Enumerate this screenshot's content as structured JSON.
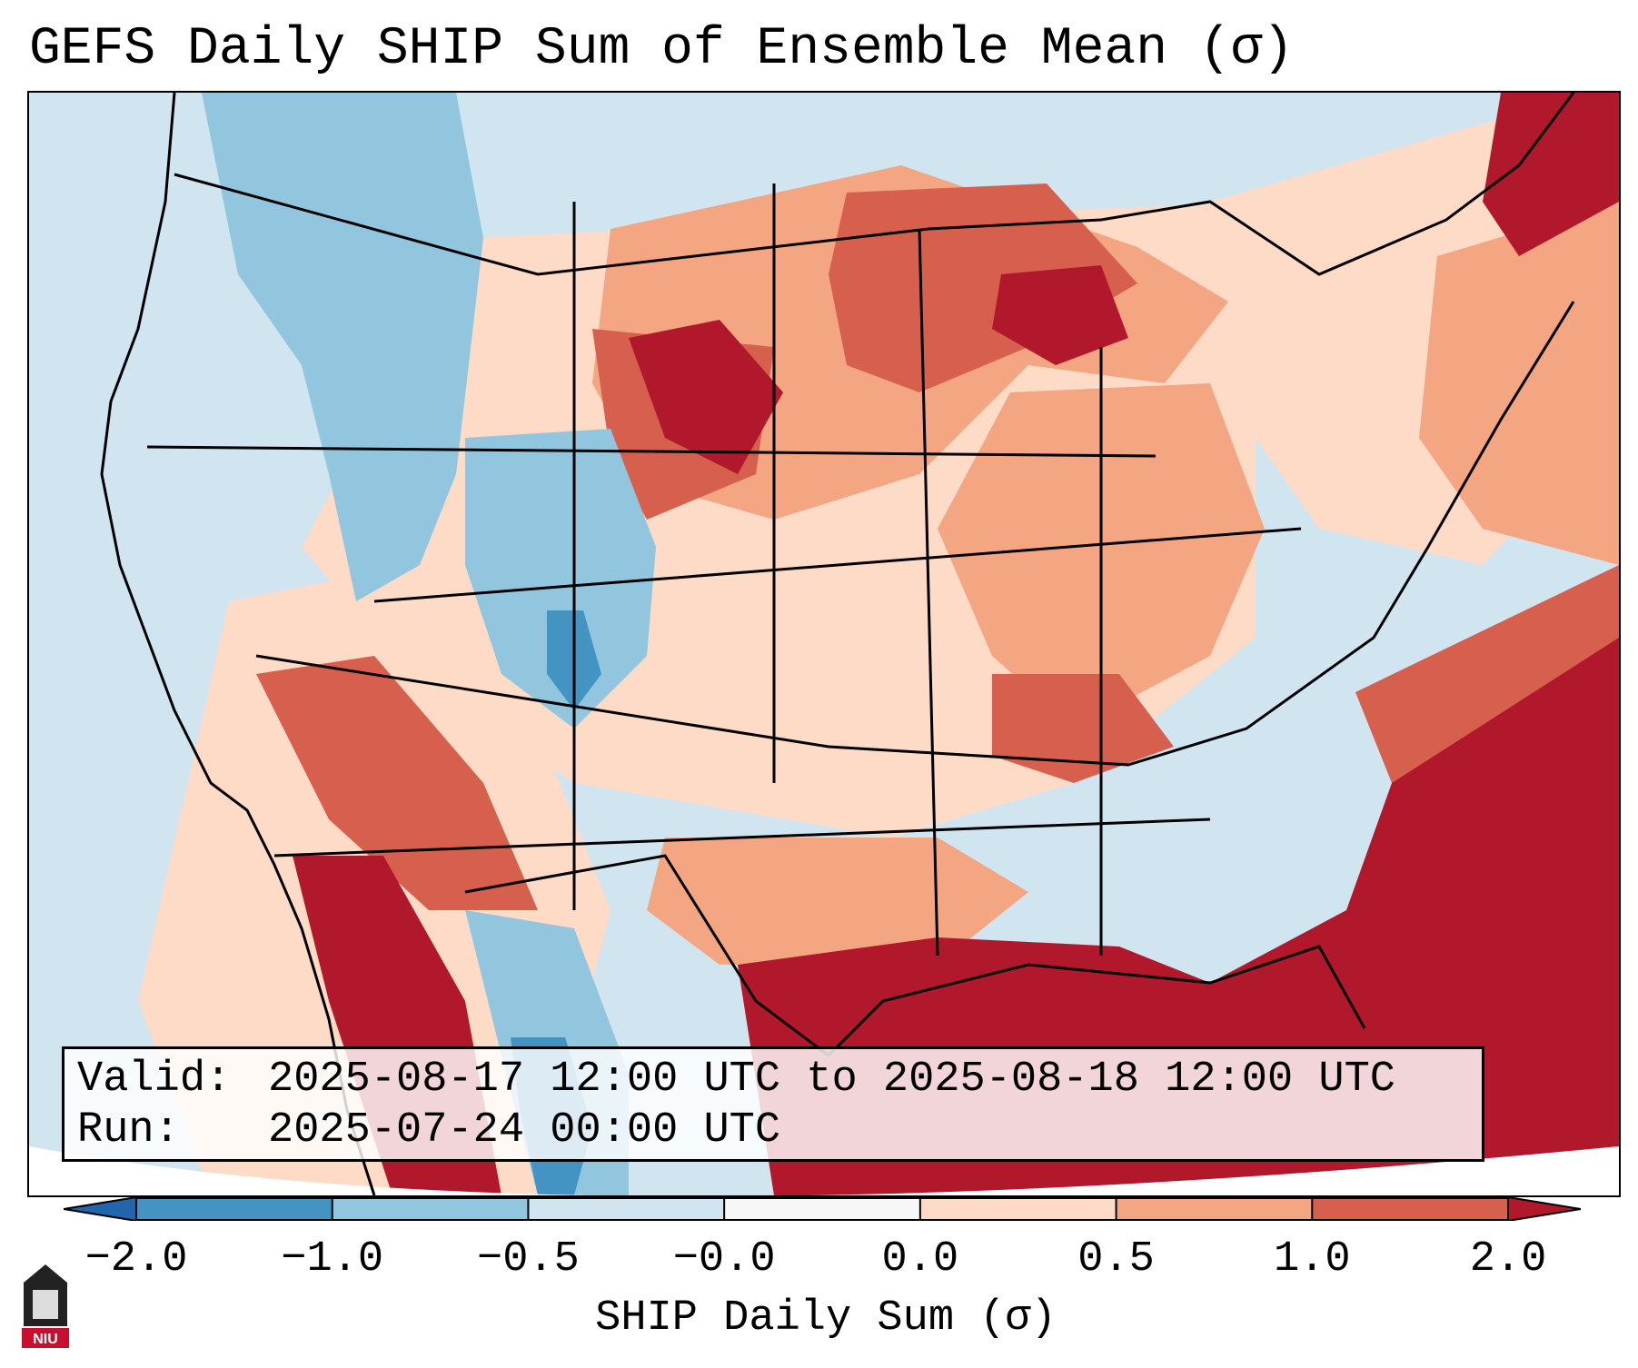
{
  "title": "GEFS Daily SHIP Sum of Ensemble Mean (σ)",
  "info": {
    "valid_label": "Valid:",
    "valid_value": "2025-08-17 12:00 UTC to 2025-08-18 12:00 UTC",
    "run_label": "Run:",
    "run_value": "2025-07-24 00:00 UTC"
  },
  "colorbar": {
    "label": "SHIP Daily Sum (σ)",
    "ticks": [
      "−2.0",
      "−1.0",
      "−0.5",
      "−0.0",
      "0.0",
      "0.5",
      "1.0",
      "2.0"
    ],
    "bounds": [
      -2.0,
      -1.0,
      -0.5,
      -0.0,
      0.0,
      0.5,
      1.0,
      2.0
    ],
    "colors": [
      "#4393c3",
      "#92c5de",
      "#d1e5f0",
      "#f7f7f7",
      "#fddbc7",
      "#f4a582",
      "#d6604d"
    ],
    "extend_under_color": "#2166ac",
    "extend_over_color": "#b2182b"
  },
  "logo": {
    "text": "NIU",
    "color": "#c8102e"
  },
  "colors": {
    "strong_positive": "#b2182b",
    "positive": "#d6604d",
    "weak_positive": "#f4a582",
    "slight_positive": "#fddbc7",
    "slight_negative": "#d1e5f0",
    "negative": "#92c5de",
    "strong_negative": "#4393c3"
  }
}
